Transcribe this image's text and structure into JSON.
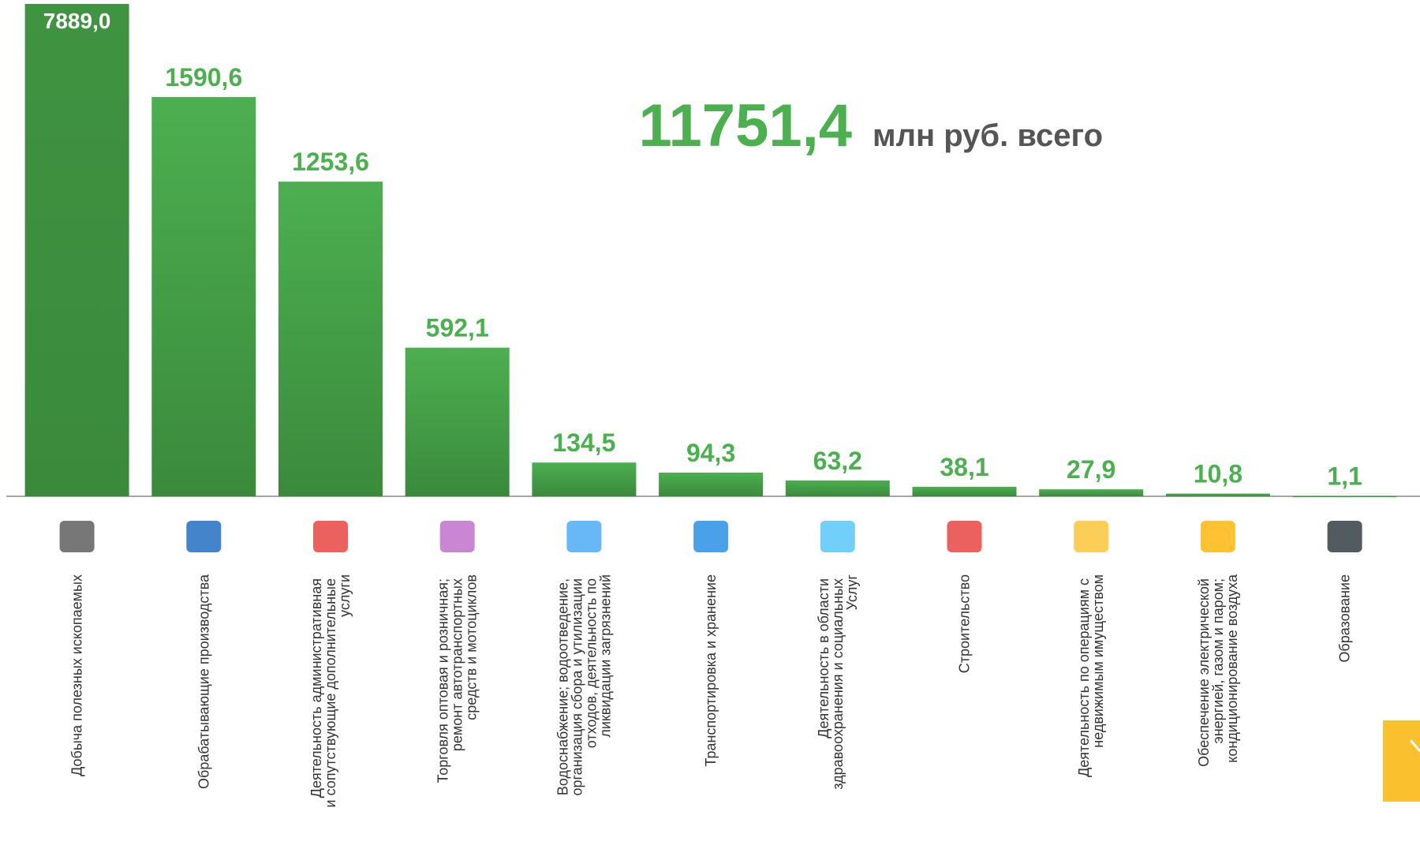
{
  "chart_data": {
    "type": "bar",
    "title": "млн  руб. всего",
    "total_label": "11751,4",
    "categories": [
      "Добыча полезных ископаемых",
      "Обрабатывающие производства",
      "Деятельность административная и сопутствующие дополнительные услуги",
      "Торговля оптовая и розничная; ремонт автотранспортных средств и мотоциклов",
      "Водоснабжение; водоотведение, организация сбора и утилизации отходов, деятельность по ликвидации загрязнений",
      "Транспортировка и хранение",
      "Деятельность в области здравоохранения и социальных Услуг",
      "Строительство",
      "Деятельность по операциям с недвижимым имуществом",
      "Обеспечение электрической энергией, газом и паром; кондиционирование воздуха",
      "Образование"
    ],
    "values": [
      7889.0,
      1590.6,
      1253.6,
      592.1,
      134.5,
      94.3,
      63.2,
      38.1,
      27.9,
      10.8,
      1.1
    ],
    "value_labels": [
      "7889,0",
      "1590,6",
      "1253,6",
      "592,1",
      "134,5",
      "94,3",
      "63,2",
      "38,1",
      "27,9",
      "10,8",
      "1,1"
    ],
    "color": "#4caf50",
    "ylim": [
      0,
      1600
    ]
  }
}
